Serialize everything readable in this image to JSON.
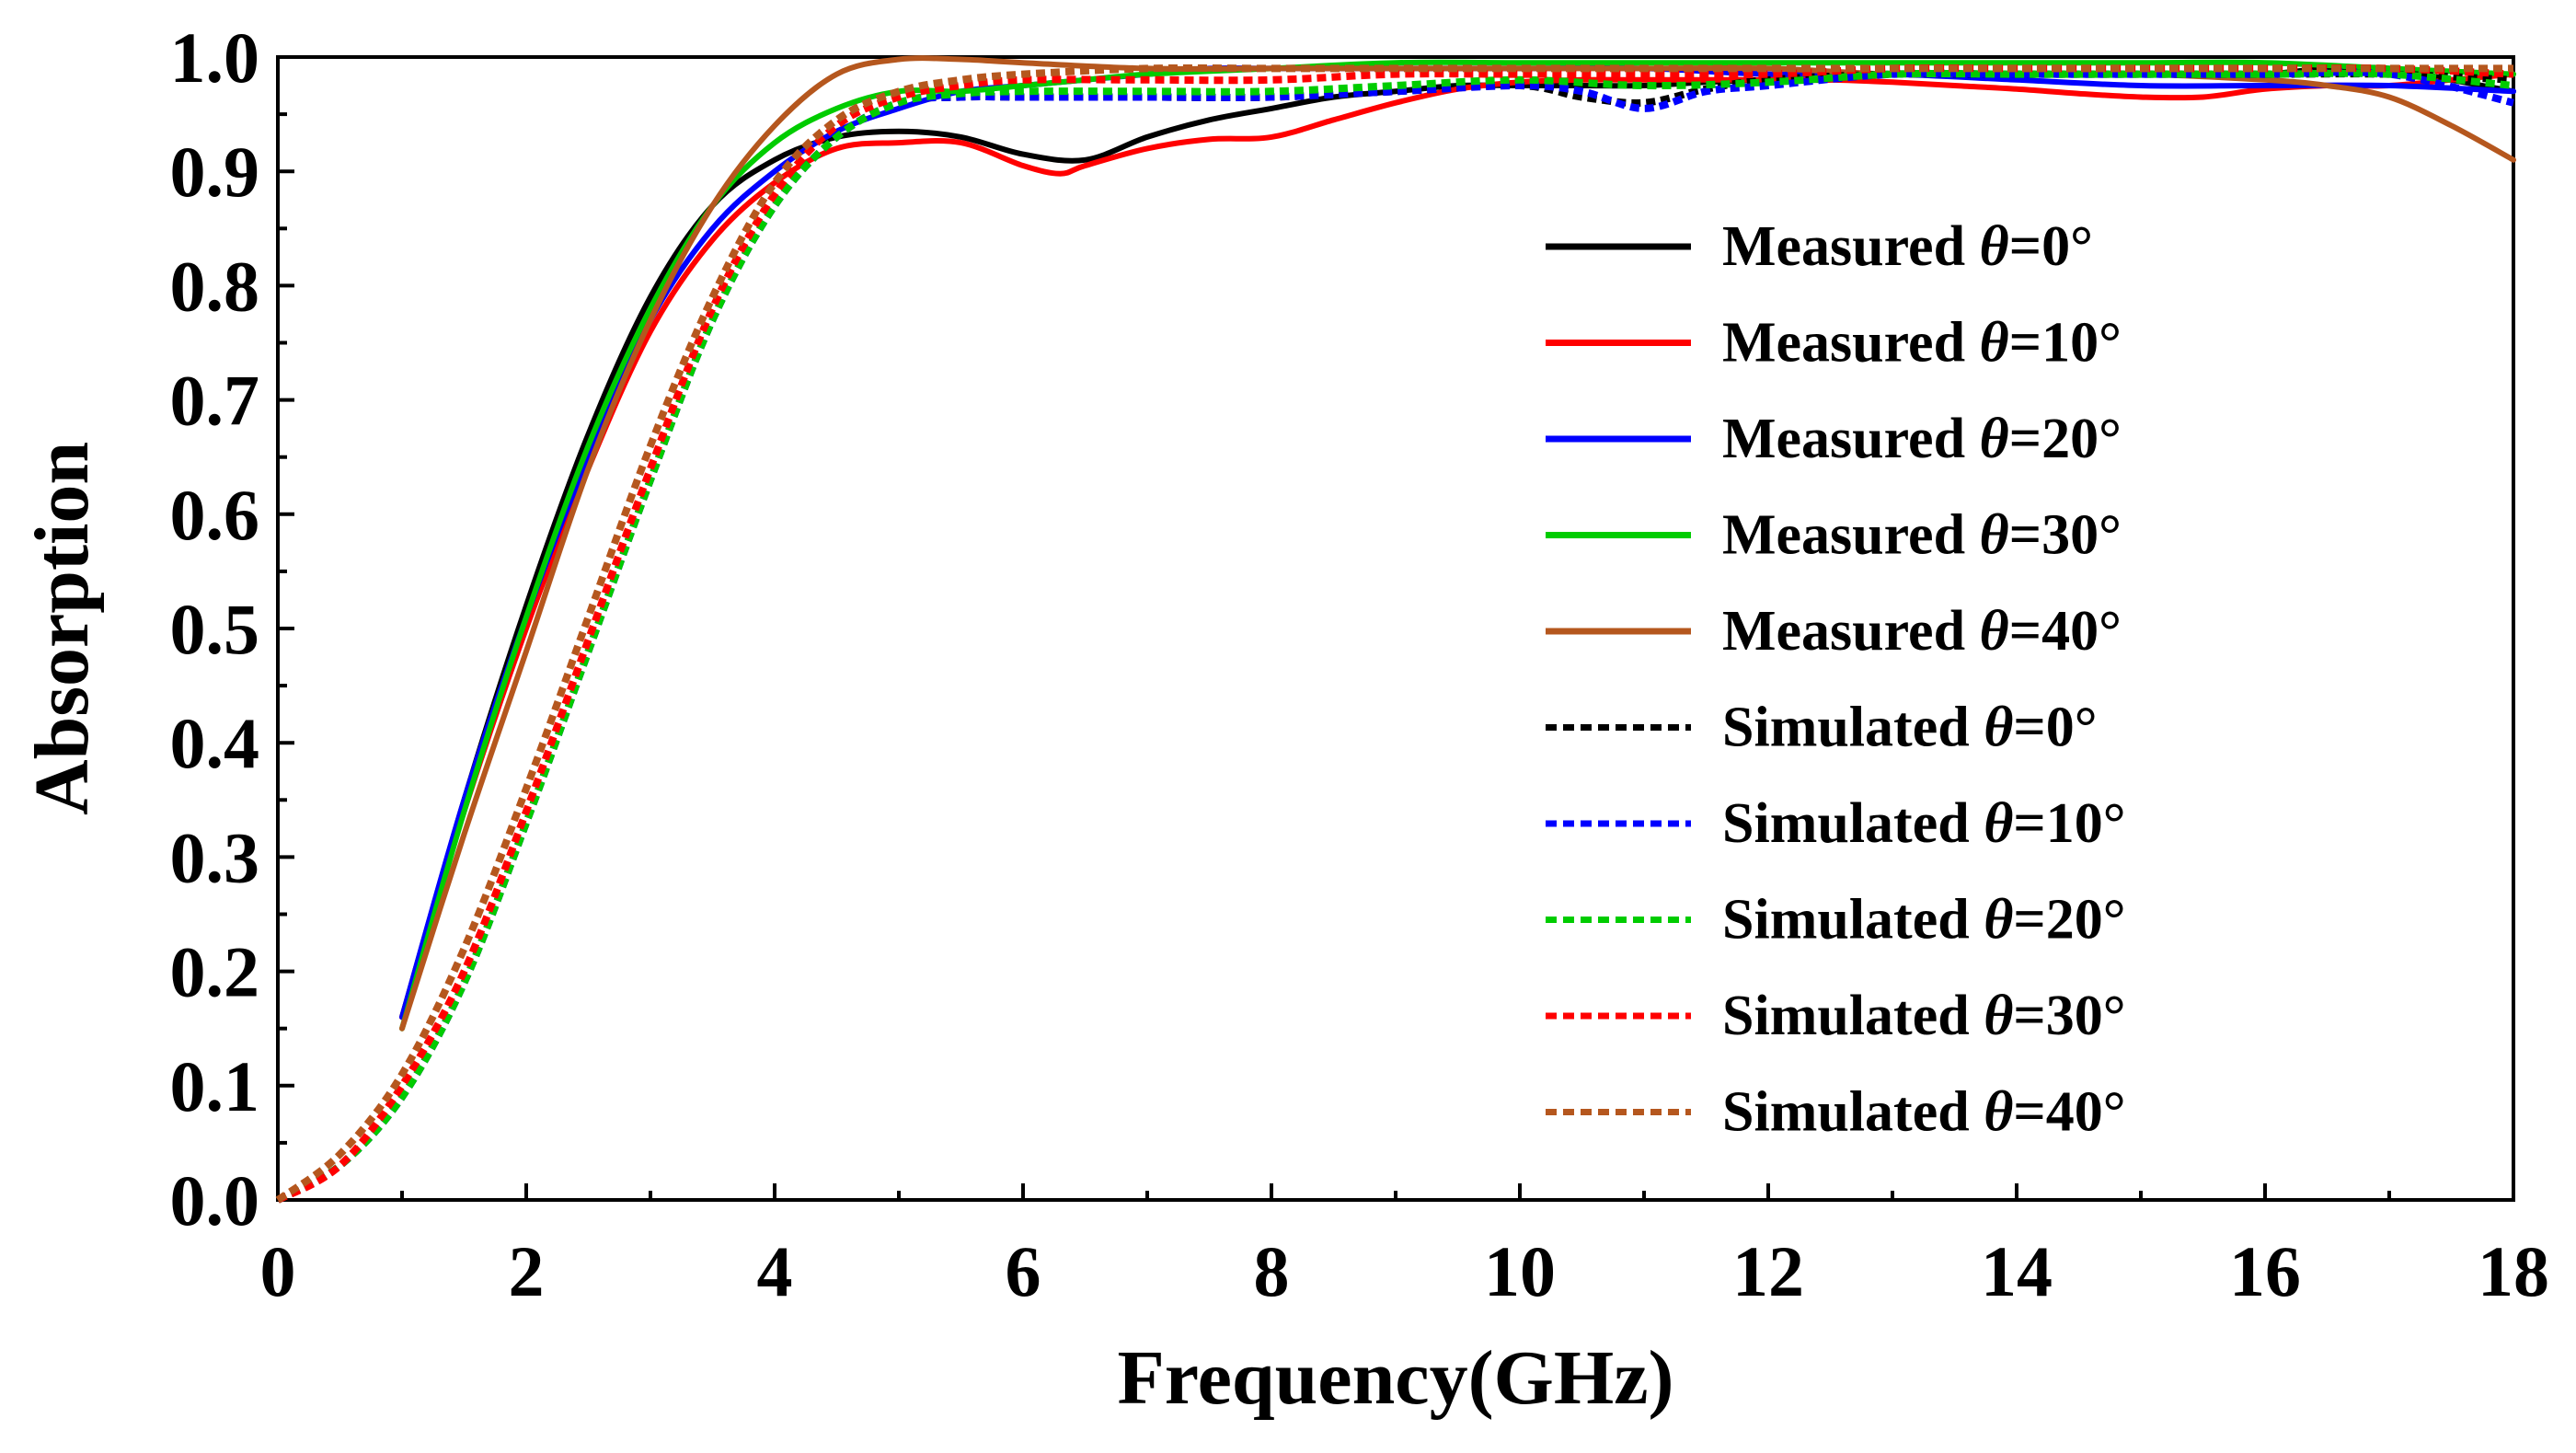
{
  "chart_data": {
    "type": "line",
    "title": "",
    "xlabel": "Frequency(GHz)",
    "ylabel": "Absorption",
    "xlim": [
      0,
      18
    ],
    "ylim": [
      0.0,
      1.0
    ],
    "xticks": [
      0,
      2,
      4,
      6,
      8,
      10,
      12,
      14,
      16,
      18
    ],
    "xtick_labels": [
      "0",
      "2",
      "4",
      "6",
      "8",
      "10",
      "12",
      "14",
      "16",
      "18"
    ],
    "yticks": [
      0.0,
      0.1,
      0.2,
      0.3,
      0.4,
      0.5,
      0.6,
      0.7,
      0.8,
      0.9,
      1.0
    ],
    "ytick_labels": [
      "0.0",
      "0.1",
      "0.2",
      "0.3",
      "0.4",
      "0.5",
      "0.6",
      "0.7",
      "0.8",
      "0.9",
      "1.0"
    ],
    "grid": false,
    "legend_position": "right",
    "series": [
      {
        "name": "Measured",
        "angle": "θ=0°",
        "color": "#000000",
        "dash": "solid",
        "x": [
          1.0,
          1.5,
          2.0,
          2.5,
          3.0,
          3.5,
          4.0,
          4.5,
          5.0,
          5.5,
          6.0,
          6.5,
          7.0,
          7.5,
          8.0,
          8.5,
          9.0,
          9.5,
          10.0,
          10.5,
          11.0,
          11.5,
          12.0,
          12.5,
          13.0,
          13.5,
          14.0,
          14.5,
          15.0,
          15.5,
          16.0,
          16.5,
          17.0,
          17.5,
          18.0
        ],
        "y": [
          0.16,
          0.35,
          0.52,
          0.67,
          0.79,
          0.87,
          0.91,
          0.93,
          0.935,
          0.93,
          0.915,
          0.91,
          0.93,
          0.945,
          0.955,
          0.965,
          0.97,
          0.975,
          0.975,
          0.975,
          0.975,
          0.978,
          0.98,
          0.98,
          0.985,
          0.985,
          0.985,
          0.985,
          0.985,
          0.985,
          0.985,
          0.99,
          0.99,
          0.98,
          0.97
        ]
      },
      {
        "name": "Measured",
        "angle": "θ=10°",
        "color": "#ff0000",
        "dash": "solid",
        "x": [
          1.0,
          1.5,
          2.0,
          2.5,
          3.0,
          3.5,
          4.0,
          4.5,
          5.0,
          5.5,
          6.0,
          6.3,
          6.5,
          7.0,
          7.5,
          8.0,
          8.5,
          9.0,
          9.5,
          10.0,
          10.5,
          11.0,
          11.5,
          12.0,
          12.5,
          13.0,
          13.5,
          14.0,
          14.5,
          15.0,
          15.5,
          16.0,
          16.5,
          17.0,
          17.5,
          18.0
        ],
        "y": [
          0.16,
          0.34,
          0.5,
          0.64,
          0.76,
          0.84,
          0.89,
          0.92,
          0.925,
          0.925,
          0.905,
          0.898,
          0.905,
          0.92,
          0.928,
          0.93,
          0.945,
          0.96,
          0.972,
          0.978,
          0.98,
          0.98,
          0.98,
          0.98,
          0.98,
          0.978,
          0.975,
          0.972,
          0.968,
          0.965,
          0.965,
          0.972,
          0.975,
          0.975,
          0.98,
          0.985
        ]
      },
      {
        "name": "Measured",
        "angle": "θ=20°",
        "color": "#0000ff",
        "dash": "solid",
        "x": [
          1.0,
          1.5,
          2.0,
          2.5,
          3.0,
          3.5,
          4.0,
          4.5,
          5.0,
          5.5,
          6.0,
          6.5,
          7.0,
          7.5,
          8.0,
          9.0,
          10.0,
          11.0,
          12.0,
          13.0,
          14.0,
          15.0,
          16.0,
          17.0,
          18.0
        ],
        "y": [
          0.16,
          0.35,
          0.51,
          0.65,
          0.77,
          0.85,
          0.9,
          0.935,
          0.955,
          0.97,
          0.975,
          0.98,
          0.985,
          0.99,
          0.99,
          0.99,
          0.99,
          0.99,
          0.985,
          0.985,
          0.98,
          0.975,
          0.975,
          0.975,
          0.97
        ]
      },
      {
        "name": "Measured",
        "angle": "θ=30°",
        "color": "#00cc00",
        "dash": "solid",
        "x": [
          1.0,
          1.5,
          2.0,
          2.5,
          3.0,
          3.5,
          4.0,
          4.5,
          5.0,
          5.5,
          6.0,
          6.5,
          7.0,
          8.0,
          9.0,
          10.0,
          11.0,
          12.0,
          13.0,
          14.0,
          15.0,
          16.0,
          17.0,
          18.0
        ],
        "y": [
          0.15,
          0.34,
          0.51,
          0.66,
          0.78,
          0.87,
          0.925,
          0.955,
          0.97,
          0.97,
          0.975,
          0.98,
          0.985,
          0.99,
          0.995,
          0.995,
          0.995,
          0.995,
          0.995,
          0.995,
          0.995,
          0.995,
          0.99,
          0.985
        ]
      },
      {
        "name": "Measured",
        "angle": "θ=40°",
        "color": "#b5571e",
        "dash": "solid",
        "x": [
          1.0,
          1.5,
          2.0,
          2.5,
          3.0,
          3.5,
          4.0,
          4.5,
          5.0,
          5.5,
          6.0,
          7.0,
          8.0,
          9.0,
          10.0,
          11.0,
          12.0,
          13.0,
          14.0,
          15.0,
          16.0,
          16.5,
          17.0,
          17.5,
          18.0
        ],
        "y": [
          0.15,
          0.32,
          0.48,
          0.64,
          0.77,
          0.87,
          0.94,
          0.985,
          0.998,
          0.998,
          0.995,
          0.99,
          0.99,
          0.99,
          0.99,
          0.99,
          0.99,
          0.985,
          0.985,
          0.985,
          0.98,
          0.975,
          0.965,
          0.94,
          0.91
        ]
      },
      {
        "name": "Simulated",
        "angle": "θ=0°",
        "color": "#000000",
        "dash": "dashed",
        "x": [
          0.0,
          0.5,
          1.0,
          1.5,
          2.0,
          2.5,
          3.0,
          3.5,
          4.0,
          4.5,
          5.0,
          5.5,
          6.0,
          6.5,
          7.0,
          8.0,
          9.0,
          10.0,
          10.5,
          11.0,
          11.5,
          12.0,
          13.0,
          14.0,
          15.0,
          16.0,
          17.0,
          18.0
        ],
        "y": [
          0.0,
          0.03,
          0.09,
          0.19,
          0.33,
          0.48,
          0.63,
          0.77,
          0.87,
          0.93,
          0.96,
          0.965,
          0.965,
          0.965,
          0.965,
          0.965,
          0.97,
          0.975,
          0.965,
          0.96,
          0.972,
          0.98,
          0.985,
          0.985,
          0.985,
          0.985,
          0.985,
          0.98
        ]
      },
      {
        "name": "Simulated",
        "angle": "θ=10°",
        "color": "#0000ff",
        "dash": "dashed",
        "x": [
          0.0,
          0.5,
          1.0,
          1.5,
          2.0,
          2.5,
          3.0,
          3.5,
          4.0,
          4.5,
          5.0,
          5.5,
          6.0,
          7.0,
          8.0,
          9.0,
          10.0,
          10.5,
          11.0,
          11.5,
          12.0,
          13.0,
          14.0,
          15.0,
          16.0,
          17.0,
          18.0
        ],
        "y": [
          0.0,
          0.03,
          0.09,
          0.19,
          0.33,
          0.48,
          0.63,
          0.77,
          0.87,
          0.93,
          0.96,
          0.965,
          0.965,
          0.965,
          0.965,
          0.97,
          0.975,
          0.97,
          0.955,
          0.97,
          0.975,
          0.985,
          0.985,
          0.985,
          0.985,
          0.985,
          0.96
        ]
      },
      {
        "name": "Simulated",
        "angle": "θ=20°",
        "color": "#00cc00",
        "dash": "dashed",
        "x": [
          0.0,
          0.5,
          1.0,
          1.5,
          2.0,
          2.5,
          3.0,
          3.5,
          4.0,
          4.5,
          5.0,
          5.5,
          6.0,
          7.0,
          8.0,
          9.0,
          10.0,
          11.0,
          12.0,
          13.0,
          14.0,
          15.0,
          16.0,
          17.0,
          18.0
        ],
        "y": [
          0.0,
          0.03,
          0.09,
          0.19,
          0.33,
          0.48,
          0.63,
          0.77,
          0.87,
          0.93,
          0.96,
          0.968,
          0.97,
          0.97,
          0.97,
          0.975,
          0.98,
          0.975,
          0.978,
          0.985,
          0.985,
          0.985,
          0.985,
          0.985,
          0.975
        ]
      },
      {
        "name": "Simulated",
        "angle": "θ=30°",
        "color": "#ff0000",
        "dash": "dashed",
        "x": [
          0.0,
          0.5,
          1.0,
          1.5,
          2.0,
          2.5,
          3.0,
          3.5,
          4.0,
          4.5,
          5.0,
          5.5,
          6.0,
          7.0,
          8.0,
          9.0,
          10.0,
          11.0,
          12.0,
          13.0,
          14.0,
          15.0,
          16.0,
          17.0,
          18.0
        ],
        "y": [
          0.0,
          0.03,
          0.1,
          0.2,
          0.34,
          0.49,
          0.64,
          0.78,
          0.88,
          0.94,
          0.965,
          0.975,
          0.98,
          0.98,
          0.98,
          0.985,
          0.985,
          0.985,
          0.985,
          0.99,
          0.99,
          0.99,
          0.99,
          0.99,
          0.985
        ]
      },
      {
        "name": "Simulated",
        "angle": "θ=40°",
        "color": "#b5571e",
        "dash": "dashed",
        "x": [
          0.0,
          0.5,
          1.0,
          1.5,
          2.0,
          2.5,
          3.0,
          3.5,
          4.0,
          4.5,
          5.0,
          5.5,
          6.0,
          7.0,
          8.0,
          9.0,
          10.0,
          11.0,
          12.0,
          13.0,
          14.0,
          15.0,
          16.0,
          17.0,
          18.0
        ],
        "y": [
          0.0,
          0.04,
          0.11,
          0.22,
          0.36,
          0.51,
          0.66,
          0.79,
          0.89,
          0.945,
          0.97,
          0.98,
          0.985,
          0.99,
          0.99,
          0.99,
          0.99,
          0.99,
          0.99,
          0.99,
          0.99,
          0.99,
          0.99,
          0.99,
          0.99
        ]
      }
    ]
  }
}
